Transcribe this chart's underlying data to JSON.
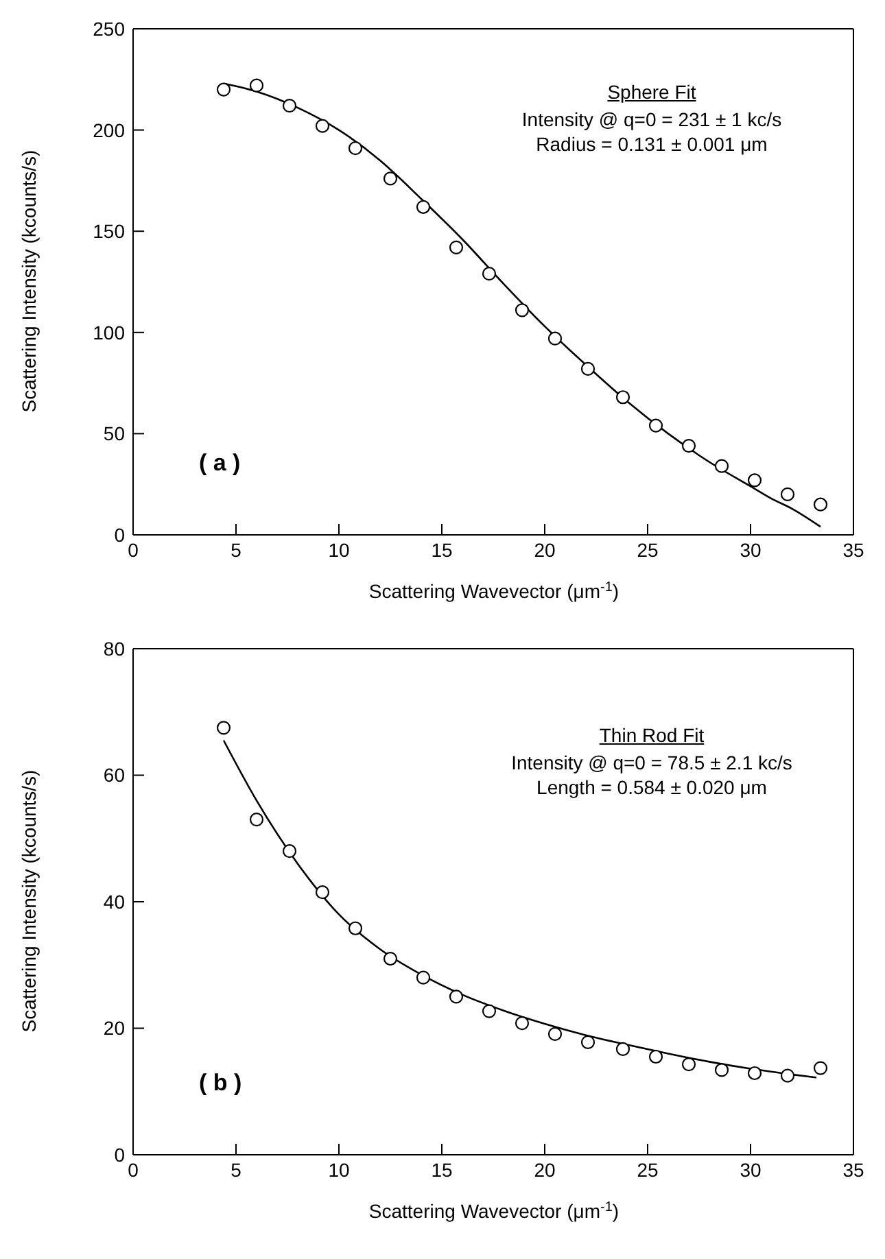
{
  "chart_data": [
    {
      "type": "scatter",
      "xlabel": "Scattering Wavevector  (μm$^{-1}$)",
      "ylabel": "Scattering Intensity  (kcounts/s)",
      "xlim": [
        0,
        35
      ],
      "xticks": [
        0,
        5,
        10,
        15,
        20,
        25,
        30,
        35
      ],
      "ylim": [
        0,
        250
      ],
      "yticks": [
        0,
        50,
        100,
        150,
        200,
        250
      ],
      "annotations": [
        "Sphere Fit",
        "Intensity @ q=0  =  231 ± 1 kc/s",
        "Radius = 0.131 ± 0.001 μm",
        "( a )"
      ],
      "series": [
        {
          "type": "scatter",
          "marker": "circle",
          "color": "#000000",
          "x": [
            4.4,
            6.0,
            7.6,
            9.2,
            10.8,
            12.5,
            14.1,
            15.7,
            17.3,
            18.9,
            20.5,
            22.1,
            23.8,
            25.4,
            27.0,
            28.6,
            30.2,
            31.8,
            33.4
          ],
          "values": [
            220,
            222,
            212,
            202,
            191,
            176,
            162,
            142,
            129,
            111,
            97,
            82,
            68,
            54,
            44,
            34,
            27,
            20,
            15
          ]
        },
        {
          "type": "line",
          "marker": "none",
          "color": "#000000",
          "x": [
            4.4,
            6,
            8,
            10,
            12,
            14,
            16,
            18,
            20,
            22,
            24,
            26,
            28,
            30,
            31,
            32,
            33.4
          ],
          "values": [
            223,
            219,
            211,
            200,
            185,
            166,
            146,
            124,
            103,
            84,
            66,
            50,
            36,
            24,
            18,
            13,
            4
          ]
        }
      ]
    },
    {
      "type": "scatter",
      "xlabel": "Scattering Wavevector  (μm$^{-1}$)",
      "ylabel": "Scattering Intensity  (kcounts/s)",
      "xlim": [
        0,
        35
      ],
      "xticks": [
        0,
        5,
        10,
        15,
        20,
        25,
        30,
        35
      ],
      "ylim": [
        0,
        80
      ],
      "yticks": [
        0,
        20,
        40,
        60,
        80
      ],
      "annotations": [
        "Thin Rod Fit",
        "Intensity @ q=0  =  78.5 ± 2.1 kc/s",
        "Length  =  0.584 ± 0.020 μm",
        "( b )"
      ],
      "series": [
        {
          "type": "scatter",
          "marker": "circle",
          "color": "#000000",
          "x": [
            4.4,
            6.0,
            7.6,
            9.2,
            10.8,
            12.5,
            14.1,
            15.7,
            17.3,
            18.9,
            20.5,
            22.1,
            23.8,
            25.4,
            27.0,
            28.6,
            30.2,
            31.8,
            33.4
          ],
          "values": [
            67.5,
            53,
            48,
            41.5,
            35.8,
            31,
            28,
            25,
            22.7,
            20.8,
            19.1,
            17.8,
            16.7,
            15.5,
            14.3,
            13.4,
            12.9,
            12.5,
            13.7
          ]
        },
        {
          "type": "line",
          "marker": "none",
          "color": "#000000",
          "x": [
            4.4,
            6,
            8,
            10,
            12,
            14,
            16,
            18,
            20,
            22,
            24,
            26,
            28,
            30,
            32,
            33.2
          ],
          "values": [
            65.5,
            56,
            46,
            38,
            32.5,
            28.5,
            25.3,
            22.8,
            20.7,
            18.9,
            17.4,
            16,
            14.7,
            13.6,
            12.7,
            12.2
          ]
        }
      ]
    }
  ]
}
